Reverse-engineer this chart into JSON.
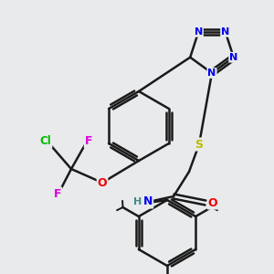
{
  "background_color": "#e8eaec",
  "bond_color": "#1a1a1a",
  "atom_colors": {
    "N": "#0000ee",
    "O": "#ee0000",
    "S": "#bbbb00",
    "F": "#dd00dd",
    "Cl": "#00bb00",
    "H": "#448888",
    "C": "#1a1a1a"
  },
  "figsize": [
    3.0,
    3.0
  ],
  "dpi": 100
}
